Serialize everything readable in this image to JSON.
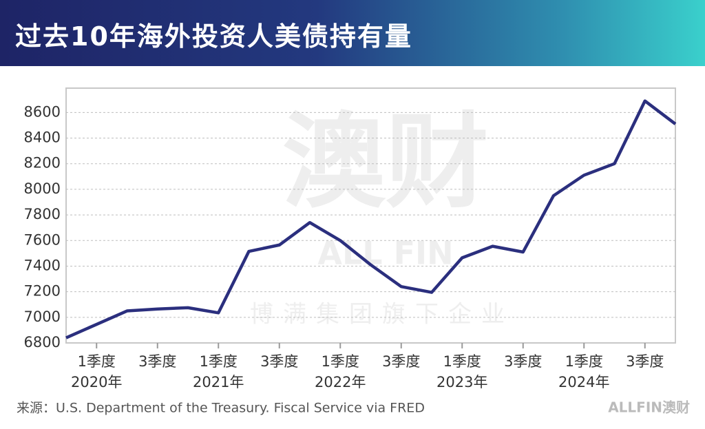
{
  "chart_data": {
    "type": "line",
    "title": "过去10年海外投资人美债持有量",
    "categories": [
      null,
      "1季度",
      null,
      "3季度",
      null,
      "1季度",
      null,
      "3季度",
      null,
      "1季度",
      null,
      "3季度",
      null,
      "1季度",
      null,
      "3季度",
      null,
      "1季度",
      null,
      "3季度",
      null
    ],
    "category_years": [
      null,
      "2020年",
      null,
      null,
      null,
      "2021年",
      null,
      null,
      null,
      "2022年",
      null,
      null,
      null,
      "2023年",
      null,
      null,
      null,
      "2024年",
      null,
      null,
      null
    ],
    "series": [
      {
        "color": "#2b2f7e",
        "values": [
          6840,
          6945,
          7050,
          7065,
          7075,
          7035,
          7515,
          7565,
          7740,
          7600,
          7410,
          7240,
          7195,
          7465,
          7555,
          7510,
          7950,
          8110,
          8200,
          8690,
          8510
        ]
      }
    ],
    "ylim": [
      6800,
      8790
    ],
    "yticks": [
      6800,
      7000,
      7200,
      7400,
      7600,
      7800,
      8000,
      8200,
      8400,
      8600
    ],
    "grid": true,
    "source": "来源：U.S. Department of the Treasury. Fiscal Service via FRED",
    "logo": "ALLFIN澳财",
    "watermark": {
      "main": "澳财",
      "brand": "ALL FIN",
      "group": "博满集团旗下企业"
    }
  }
}
